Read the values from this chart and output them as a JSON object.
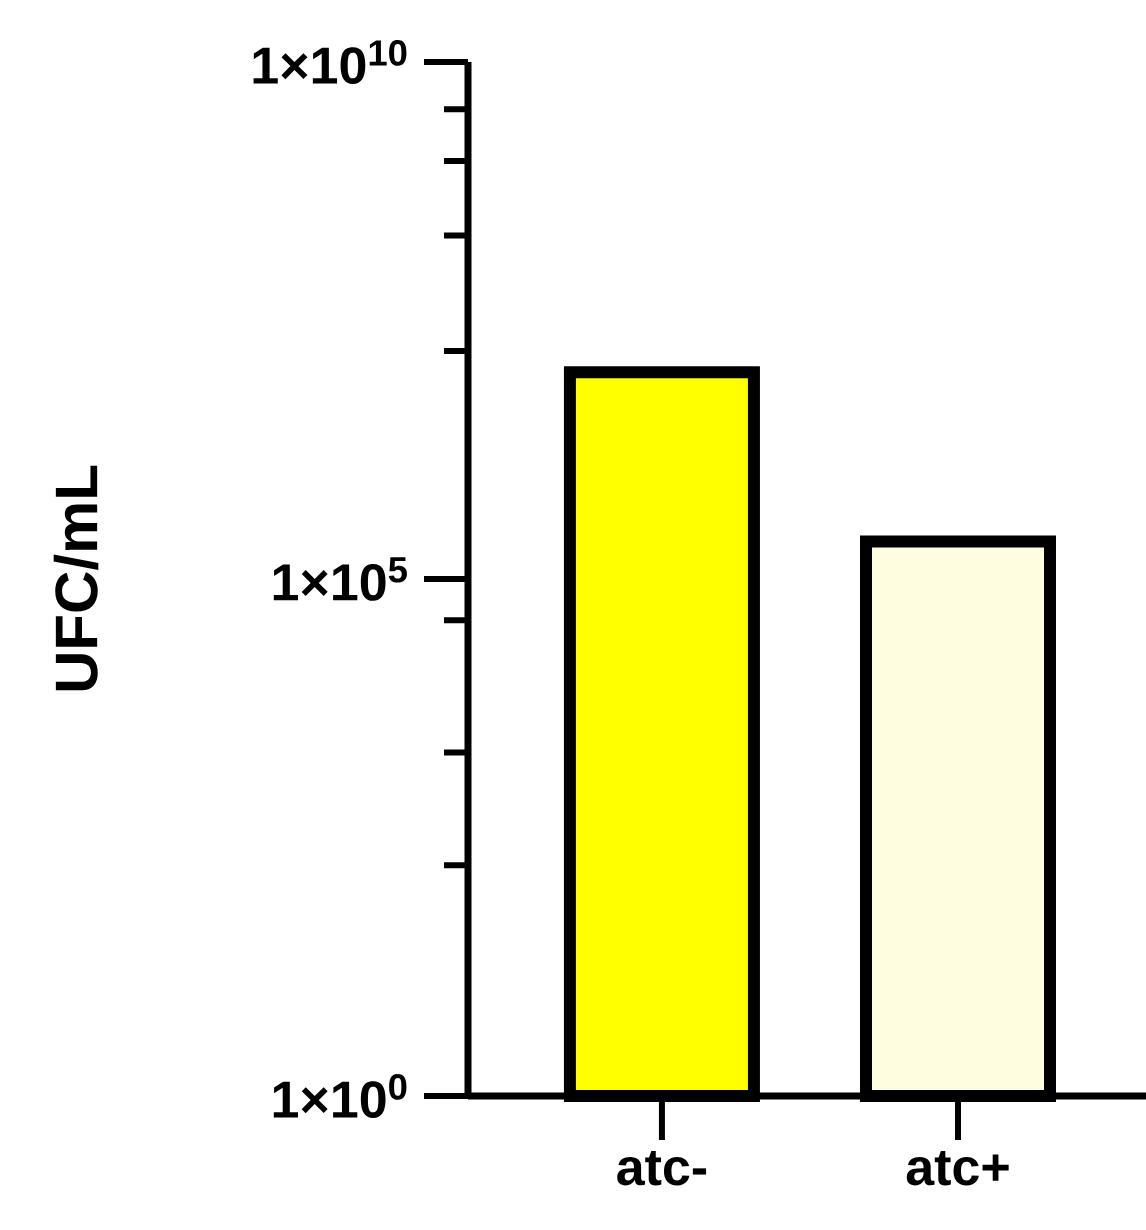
{
  "chart_data": {
    "type": "bar",
    "ylabel": "UFC/mL",
    "categories": [
      "atc-",
      "atc+"
    ],
    "values": [
      10000000,
      230000
    ],
    "colors": [
      "#ffff00",
      "#fffde0"
    ],
    "log": true,
    "ylim": [
      1,
      10000000000
    ],
    "yticks": [
      {
        "value": 1,
        "label": "1×10$^{0}$"
      },
      {
        "value": 100000,
        "label": "1×10$^{5}$"
      },
      {
        "value": 10000000000,
        "label": "1×10$^{10}$"
      },
      {
        "value": 170,
        "label": null
      },
      {
        "value": 2100,
        "label": null
      },
      {
        "value": 40000,
        "label": null
      },
      {
        "value": 16000000,
        "label": null
      },
      {
        "value": 210000000,
        "label": null
      },
      {
        "value": 1100000000,
        "label": null
      },
      {
        "value": 3500000000,
        "label": null
      }
    ],
    "grid": false
  }
}
